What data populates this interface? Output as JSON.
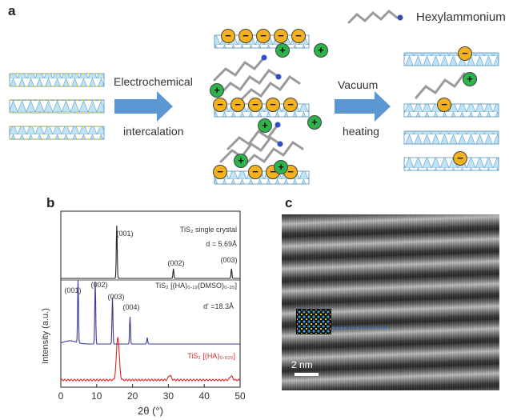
{
  "panel_a": {
    "letter": "a",
    "legend_label": "Hexylammonium",
    "step1_top": "Electrochemical",
    "step1_bottom": "intercalation",
    "step2_top": "Vacuum",
    "step2_bottom": "heating",
    "minus": "−",
    "plus": "+"
  },
  "panel_b": {
    "letter": "b",
    "ylabel": "Intensity (a.u.)",
    "xlabel": "2θ (°)",
    "annotations": {
      "single_crystal": "TiS₂ single crystal",
      "d1": "d = 5.69Å",
      "intercalated": "TiS₂ [(HA)₀.₁₉(DMSO)₀.₃₅]",
      "d2": "d' =18.3Å",
      "heated": "TiS₂ [(HA)₀.₀₂₅]",
      "p001a": "(001)",
      "p002a": "(002)",
      "p003a": "(003)",
      "p001b": "(001)",
      "p002b": "(002)",
      "p003b": "(003)",
      "p004b": "(004)"
    }
  },
  "panel_c": {
    "letter": "c",
    "scalebar": "2 nm"
  },
  "chart_data": {
    "type": "line",
    "xlabel": "2θ (°)",
    "ylabel": "Intensity (a.u.)",
    "xlim": [
      0,
      50
    ],
    "xticks": [
      0,
      10,
      20,
      30,
      40,
      50
    ],
    "series": [
      {
        "name": "TiS₂ single crystal",
        "color": "#222222",
        "peaks_2theta": [
          15.6,
          31.4,
          47.6
        ]
      },
      {
        "name": "TiS₂ [(HA)₀.₁₉(DMSO)₀.₃₅]",
        "color": "#3a3a9a",
        "peaks_2theta": [
          4.8,
          9.6,
          14.4,
          19.3,
          24.1
        ]
      },
      {
        "name": "TiS₂ [(HA)₀.₀₂₅]",
        "color": "#d62828",
        "peaks_2theta": [
          15.9,
          30.4,
          47.5
        ]
      }
    ]
  }
}
